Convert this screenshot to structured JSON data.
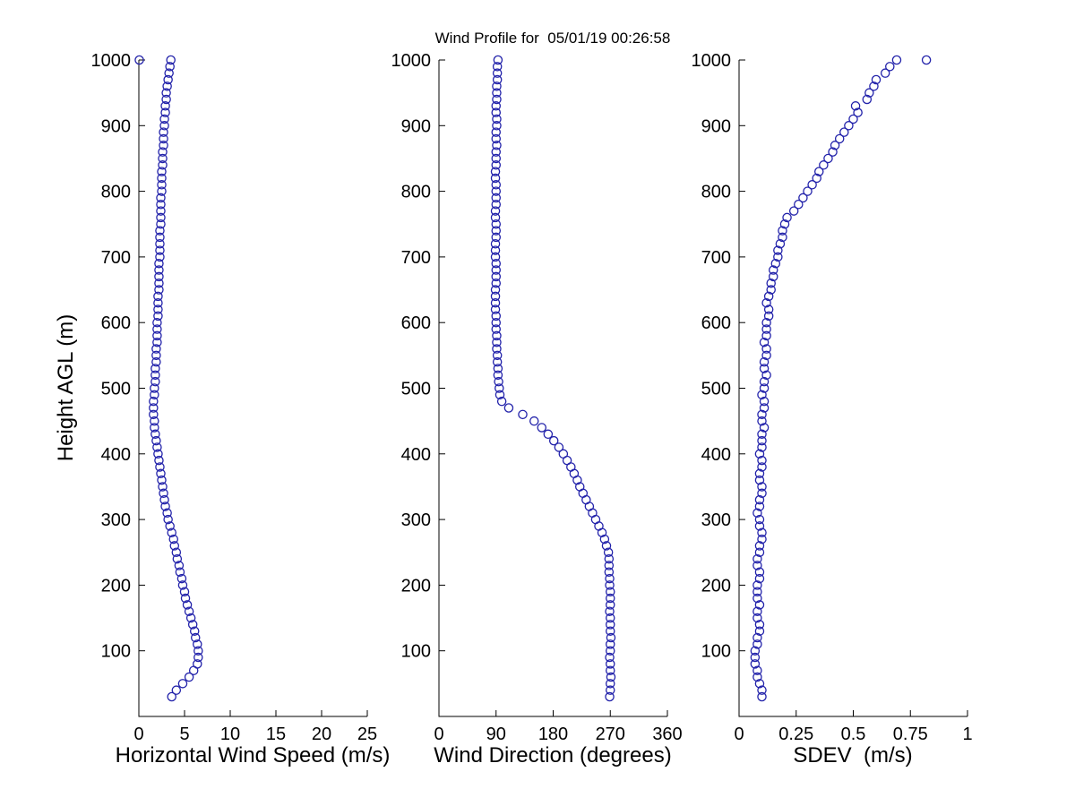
{
  "chart_data": {
    "type": "scatter",
    "title": "Wind Profile for  05/01/19 00:26:58",
    "ylabel": "Height AGL (m)",
    "ylim": [
      0,
      1000
    ],
    "ytick_vals": [
      100,
      200,
      300,
      400,
      500,
      600,
      700,
      800,
      900,
      1000
    ],
    "ytick_labels": [
      "100",
      "200",
      "300",
      "400",
      "500",
      "600",
      "700",
      "800",
      "900",
      "1000"
    ],
    "grid": false,
    "legend": "none",
    "background": "#ffffff",
    "axis_color": "#000000",
    "marker": {
      "shape": "open-circle",
      "color": "#2222aa",
      "radius": 4.6,
      "stroke_width": 1.3
    },
    "panels": [
      {
        "name": "wind-speed",
        "xlabel": "Horizontal Wind Speed (m/s)",
        "xlim": [
          0,
          25
        ],
        "xtick_vals": [
          0,
          5,
          10,
          15,
          20,
          25
        ],
        "xtick_labels": [
          "0",
          "5",
          "10",
          "15",
          "20",
          "25"
        ],
        "points": [
          [
            3.6,
            30
          ],
          [
            4.1,
            40
          ],
          [
            4.8,
            50
          ],
          [
            5.5,
            60
          ],
          [
            6.0,
            70
          ],
          [
            6.4,
            80
          ],
          [
            6.5,
            90
          ],
          [
            6.5,
            100
          ],
          [
            6.4,
            110
          ],
          [
            6.2,
            120
          ],
          [
            6.1,
            130
          ],
          [
            5.9,
            140
          ],
          [
            5.7,
            150
          ],
          [
            5.5,
            160
          ],
          [
            5.3,
            170
          ],
          [
            5.1,
            180
          ],
          [
            5.0,
            190
          ],
          [
            4.8,
            200
          ],
          [
            4.7,
            210
          ],
          [
            4.5,
            220
          ],
          [
            4.4,
            230
          ],
          [
            4.2,
            240
          ],
          [
            4.1,
            250
          ],
          [
            3.9,
            260
          ],
          [
            3.8,
            270
          ],
          [
            3.6,
            280
          ],
          [
            3.4,
            290
          ],
          [
            3.2,
            300
          ],
          [
            3.1,
            310
          ],
          [
            2.9,
            320
          ],
          [
            2.8,
            330
          ],
          [
            2.7,
            340
          ],
          [
            2.6,
            350
          ],
          [
            2.5,
            360
          ],
          [
            2.4,
            370
          ],
          [
            2.3,
            380
          ],
          [
            2.2,
            390
          ],
          [
            2.1,
            400
          ],
          [
            2.0,
            410
          ],
          [
            1.9,
            420
          ],
          [
            1.8,
            430
          ],
          [
            1.7,
            440
          ],
          [
            1.7,
            450
          ],
          [
            1.6,
            460
          ],
          [
            1.6,
            470
          ],
          [
            1.6,
            480
          ],
          [
            1.7,
            490
          ],
          [
            1.7,
            500
          ],
          [
            1.8,
            510
          ],
          [
            1.8,
            520
          ],
          [
            1.8,
            530
          ],
          [
            1.9,
            540
          ],
          [
            1.9,
            550
          ],
          [
            1.9,
            560
          ],
          [
            2.0,
            570
          ],
          [
            2.0,
            580
          ],
          [
            2.0,
            590
          ],
          [
            2.0,
            600
          ],
          [
            2.1,
            610
          ],
          [
            2.1,
            620
          ],
          [
            2.1,
            630
          ],
          [
            2.1,
            640
          ],
          [
            2.2,
            650
          ],
          [
            2.2,
            660
          ],
          [
            2.2,
            670
          ],
          [
            2.2,
            680
          ],
          [
            2.2,
            690
          ],
          [
            2.3,
            700
          ],
          [
            2.3,
            710
          ],
          [
            2.3,
            720
          ],
          [
            2.3,
            730
          ],
          [
            2.3,
            740
          ],
          [
            2.4,
            750
          ],
          [
            2.4,
            760
          ],
          [
            2.4,
            770
          ],
          [
            2.4,
            780
          ],
          [
            2.4,
            790
          ],
          [
            2.5,
            800
          ],
          [
            2.5,
            810
          ],
          [
            2.5,
            820
          ],
          [
            2.5,
            830
          ],
          [
            2.6,
            840
          ],
          [
            2.6,
            850
          ],
          [
            2.6,
            860
          ],
          [
            2.7,
            870
          ],
          [
            2.7,
            880
          ],
          [
            2.7,
            890
          ],
          [
            2.8,
            900
          ],
          [
            2.8,
            910
          ],
          [
            2.9,
            920
          ],
          [
            2.9,
            930
          ],
          [
            3.0,
            940
          ],
          [
            3.0,
            950
          ],
          [
            3.1,
            960
          ],
          [
            3.2,
            970
          ],
          [
            3.3,
            980
          ],
          [
            3.4,
            990
          ],
          [
            3.5,
            1000
          ],
          [
            0.05,
            1000
          ]
        ]
      },
      {
        "name": "wind-direction",
        "xlabel": "Wind Direction (degrees)",
        "xlim": [
          0,
          360
        ],
        "xtick_vals": [
          0,
          90,
          180,
          270,
          360
        ],
        "xtick_labels": [
          "0",
          "90",
          "180",
          "270",
          "360"
        ],
        "points": [
          [
            269,
            30
          ],
          [
            270,
            40
          ],
          [
            270,
            50
          ],
          [
            271,
            60
          ],
          [
            270,
            70
          ],
          [
            270,
            80
          ],
          [
            269,
            90
          ],
          [
            270,
            100
          ],
          [
            270,
            110
          ],
          [
            271,
            120
          ],
          [
            270,
            130
          ],
          [
            270,
            140
          ],
          [
            270,
            150
          ],
          [
            269,
            160
          ],
          [
            270,
            170
          ],
          [
            270,
            180
          ],
          [
            270,
            190
          ],
          [
            269,
            200
          ],
          [
            269,
            210
          ],
          [
            268,
            220
          ],
          [
            268,
            230
          ],
          [
            268,
            240
          ],
          [
            267,
            250
          ],
          [
            264,
            260
          ],
          [
            261,
            270
          ],
          [
            257,
            280
          ],
          [
            252,
            290
          ],
          [
            247,
            300
          ],
          [
            242,
            310
          ],
          [
            237,
            320
          ],
          [
            232,
            330
          ],
          [
            227,
            340
          ],
          [
            222,
            350
          ],
          [
            218,
            360
          ],
          [
            213,
            370
          ],
          [
            208,
            380
          ],
          [
            202,
            390
          ],
          [
            196,
            400
          ],
          [
            189,
            410
          ],
          [
            181,
            420
          ],
          [
            172,
            430
          ],
          [
            162,
            440
          ],
          [
            150,
            450
          ],
          [
            132,
            460
          ],
          [
            110,
            470
          ],
          [
            99,
            480
          ],
          [
            96,
            490
          ],
          [
            95,
            500
          ],
          [
            94,
            510
          ],
          [
            93,
            520
          ],
          [
            93,
            530
          ],
          [
            92,
            540
          ],
          [
            92,
            550
          ],
          [
            91,
            560
          ],
          [
            91,
            570
          ],
          [
            91,
            580
          ],
          [
            90,
            590
          ],
          [
            90,
            600
          ],
          [
            90,
            610
          ],
          [
            89,
            620
          ],
          [
            89,
            630
          ],
          [
            89,
            640
          ],
          [
            89,
            650
          ],
          [
            90,
            660
          ],
          [
            90,
            670
          ],
          [
            90,
            680
          ],
          [
            90,
            690
          ],
          [
            89,
            700
          ],
          [
            89,
            710
          ],
          [
            89,
            720
          ],
          [
            90,
            730
          ],
          [
            90,
            740
          ],
          [
            90,
            750
          ],
          [
            89,
            760
          ],
          [
            89,
            770
          ],
          [
            90,
            780
          ],
          [
            90,
            790
          ],
          [
            90,
            800
          ],
          [
            90,
            810
          ],
          [
            89,
            820
          ],
          [
            89,
            830
          ],
          [
            90,
            840
          ],
          [
            90,
            850
          ],
          [
            90,
            860
          ],
          [
            91,
            870
          ],
          [
            90,
            880
          ],
          [
            90,
            890
          ],
          [
            91,
            900
          ],
          [
            91,
            910
          ],
          [
            90,
            920
          ],
          [
            90,
            930
          ],
          [
            91,
            940
          ],
          [
            91,
            950
          ],
          [
            91,
            960
          ],
          [
            92,
            970
          ],
          [
            92,
            980
          ],
          [
            92,
            990
          ],
          [
            93,
            1000
          ]
        ]
      },
      {
        "name": "sdev",
        "xlabel": "SDEV  (m/s)",
        "xlim": [
          0,
          1
        ],
        "xtick_vals": [
          0,
          0.25,
          0.5,
          0.75,
          1
        ],
        "xtick_labels": [
          "0",
          "0.25",
          "0.5",
          "0.75",
          "1"
        ],
        "points": [
          [
            0.1,
            30
          ],
          [
            0.1,
            40
          ],
          [
            0.09,
            50
          ],
          [
            0.08,
            60
          ],
          [
            0.08,
            70
          ],
          [
            0.07,
            80
          ],
          [
            0.07,
            90
          ],
          [
            0.07,
            100
          ],
          [
            0.08,
            110
          ],
          [
            0.08,
            120
          ],
          [
            0.09,
            130
          ],
          [
            0.09,
            140
          ],
          [
            0.08,
            150
          ],
          [
            0.08,
            160
          ],
          [
            0.09,
            170
          ],
          [
            0.08,
            180
          ],
          [
            0.08,
            190
          ],
          [
            0.08,
            200
          ],
          [
            0.09,
            210
          ],
          [
            0.09,
            220
          ],
          [
            0.08,
            230
          ],
          [
            0.08,
            240
          ],
          [
            0.09,
            250
          ],
          [
            0.09,
            260
          ],
          [
            0.1,
            270
          ],
          [
            0.1,
            280
          ],
          [
            0.09,
            290
          ],
          [
            0.09,
            300
          ],
          [
            0.08,
            310
          ],
          [
            0.09,
            320
          ],
          [
            0.09,
            330
          ],
          [
            0.1,
            340
          ],
          [
            0.1,
            350
          ],
          [
            0.09,
            360
          ],
          [
            0.09,
            370
          ],
          [
            0.1,
            380
          ],
          [
            0.1,
            390
          ],
          [
            0.09,
            400
          ],
          [
            0.1,
            410
          ],
          [
            0.1,
            420
          ],
          [
            0.1,
            430
          ],
          [
            0.11,
            440
          ],
          [
            0.1,
            450
          ],
          [
            0.1,
            460
          ],
          [
            0.11,
            470
          ],
          [
            0.11,
            480
          ],
          [
            0.1,
            490
          ],
          [
            0.11,
            500
          ],
          [
            0.11,
            510
          ],
          [
            0.12,
            520
          ],
          [
            0.11,
            530
          ],
          [
            0.11,
            540
          ],
          [
            0.12,
            550
          ],
          [
            0.12,
            560
          ],
          [
            0.11,
            570
          ],
          [
            0.12,
            580
          ],
          [
            0.12,
            590
          ],
          [
            0.12,
            600
          ],
          [
            0.13,
            610
          ],
          [
            0.13,
            620
          ],
          [
            0.12,
            630
          ],
          [
            0.13,
            640
          ],
          [
            0.14,
            650
          ],
          [
            0.14,
            660
          ],
          [
            0.15,
            670
          ],
          [
            0.15,
            680
          ],
          [
            0.16,
            690
          ],
          [
            0.17,
            700
          ],
          [
            0.17,
            710
          ],
          [
            0.18,
            720
          ],
          [
            0.19,
            730
          ],
          [
            0.19,
            740
          ],
          [
            0.2,
            750
          ],
          [
            0.21,
            760
          ],
          [
            0.24,
            770
          ],
          [
            0.26,
            780
          ],
          [
            0.28,
            790
          ],
          [
            0.3,
            800
          ],
          [
            0.32,
            810
          ],
          [
            0.34,
            820
          ],
          [
            0.35,
            830
          ],
          [
            0.37,
            840
          ],
          [
            0.39,
            850
          ],
          [
            0.41,
            860
          ],
          [
            0.42,
            870
          ],
          [
            0.44,
            880
          ],
          [
            0.46,
            890
          ],
          [
            0.48,
            900
          ],
          [
            0.5,
            910
          ],
          [
            0.52,
            920
          ],
          [
            0.51,
            930
          ],
          [
            0.56,
            940
          ],
          [
            0.57,
            950
          ],
          [
            0.59,
            960
          ],
          [
            0.6,
            970
          ],
          [
            0.64,
            980
          ],
          [
            0.66,
            990
          ],
          [
            0.69,
            1000
          ],
          [
            0.82,
            1000
          ]
        ]
      }
    ]
  }
}
